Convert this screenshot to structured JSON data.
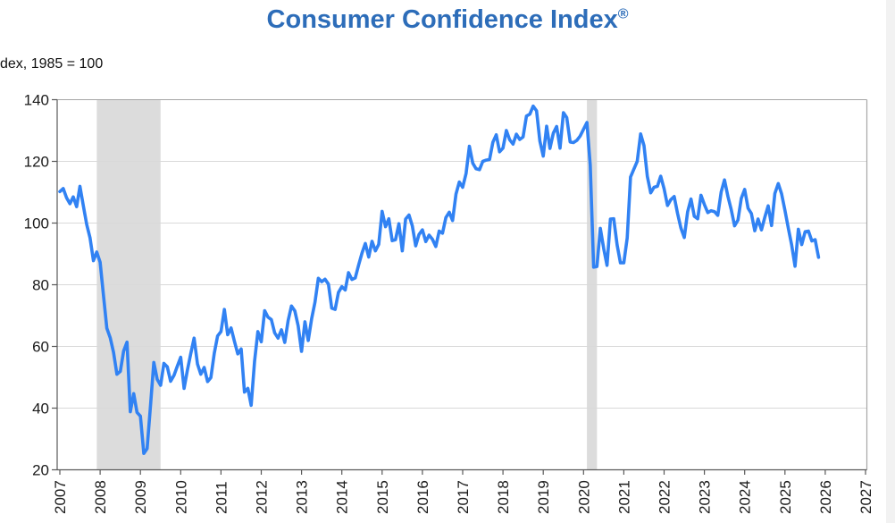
{
  "header": {
    "title": "Consumer Confidence Index",
    "registered_mark": "®",
    "axis_note": "dex, 1985 = 100"
  },
  "colors": {
    "title": "#2d6db9",
    "line": "#3182f3",
    "recession_band": "#dcdcdc",
    "gridline": "#d9d9d9",
    "axis": "#595959",
    "plot_border": "#a6a6a6",
    "tick_label": "#1a1a1a",
    "right_strip": "#f2f2f2"
  },
  "chart_data": {
    "type": "line",
    "title": "Consumer Confidence Index®",
    "ylabel": "dex, 1985 = 100",
    "xlabel": "",
    "ylim": [
      20,
      140
    ],
    "xlim": [
      2006.95,
      2027.25
    ],
    "grid": "horizontal",
    "legend": "none",
    "y_ticks": [
      "20",
      "40",
      "60",
      "80",
      "100",
      "120",
      "140"
    ],
    "x_ticks": [
      "2007",
      "2008",
      "2009",
      "2010",
      "2011",
      "2012",
      "2013",
      "2014",
      "2015",
      "2016",
      "2017",
      "2018",
      "2019",
      "2020",
      "2021",
      "2022",
      "2023",
      "2024",
      "2025",
      "2026",
      "2027"
    ],
    "recession_bands": [
      {
        "start": "2007-12",
        "end": "2009-06"
      },
      {
        "start": "2020-02",
        "end": "2020-04"
      }
    ],
    "series": [
      {
        "name": "Consumer Confidence Index",
        "frequency": "monthly",
        "start": "2007-01",
        "end": "2025-11",
        "values_by_year": {
          "2007": [
            110.2,
            111.2,
            108.2,
            106.3,
            108.5,
            105.3,
            111.9,
            105.6,
            99.5,
            95.2,
            87.8,
            90.6
          ],
          "2008": [
            87.3,
            76.4,
            65.9,
            62.8,
            58.1,
            51.0,
            51.9,
            58.5,
            61.4,
            38.8,
            44.7,
            38.6
          ],
          "2009": [
            37.4,
            25.3,
            26.9,
            40.8,
            54.8,
            49.3,
            47.4,
            54.5,
            53.4,
            48.7,
            50.6,
            53.6
          ],
          "2010": [
            56.5,
            46.4,
            52.3,
            57.7,
            62.7,
            54.3,
            51.0,
            53.2,
            48.6,
            49.9,
            57.8,
            63.4
          ],
          "2011": [
            64.8,
            72.0,
            63.8,
            66.0,
            61.7,
            57.6,
            59.2,
            45.2,
            46.4,
            40.9,
            55.2,
            64.8
          ],
          "2012": [
            61.5,
            71.6,
            69.5,
            68.7,
            64.4,
            62.7,
            65.4,
            61.3,
            68.4,
            73.1,
            71.5,
            66.7
          ],
          "2013": [
            58.4,
            68.0,
            61.9,
            69.0,
            74.3,
            82.1,
            81.0,
            81.8,
            80.2,
            72.4,
            72.0,
            77.5
          ],
          "2014": [
            79.4,
            78.3,
            83.9,
            81.7,
            82.2,
            86.4,
            90.3,
            93.4,
            89.0,
            94.1,
            91.0,
            93.1
          ],
          "2015": [
            103.8,
            98.8,
            101.4,
            94.3,
            94.6,
            99.8,
            91.0,
            101.3,
            102.6,
            99.1,
            92.6,
            96.3
          ],
          "2016": [
            97.8,
            94.0,
            96.1,
            94.7,
            92.4,
            97.4,
            96.7,
            101.8,
            103.5,
            100.8,
            109.4,
            113.3
          ],
          "2017": [
            111.6,
            116.1,
            124.9,
            119.4,
            117.6,
            117.3,
            120.0,
            120.4,
            120.6,
            126.2,
            128.6,
            123.1
          ],
          "2018": [
            124.3,
            130.0,
            127.0,
            125.6,
            128.8,
            127.1,
            127.9,
            134.7,
            135.3,
            137.9,
            136.4,
            126.6
          ],
          "2019": [
            121.7,
            131.4,
            124.2,
            129.2,
            131.3,
            124.3,
            135.8,
            134.2,
            126.3,
            126.1,
            126.8,
            128.2
          ],
          "2020": [
            130.4,
            132.6,
            118.8,
            85.7,
            85.9,
            98.3,
            91.7,
            86.3,
            101.3,
            101.4,
            92.9,
            87.1
          ],
          "2021": [
            87.1,
            95.2,
            114.9,
            117.5,
            120.0,
            128.9,
            125.1,
            115.2,
            109.8,
            111.6,
            111.9,
            115.2
          ],
          "2022": [
            111.1,
            105.7,
            107.6,
            108.6,
            103.2,
            98.4,
            95.3,
            103.6,
            107.8,
            102.2,
            101.4,
            109.0
          ],
          "2023": [
            106.0,
            103.4,
            104.0,
            103.7,
            102.5,
            110.1,
            114.0,
            108.7,
            104.3,
            99.1,
            101.0,
            108.0
          ],
          "2024": [
            110.9,
            104.8,
            103.1,
            97.5,
            101.3,
            97.8,
            101.9,
            105.6,
            99.2,
            109.6,
            112.8,
            109.5
          ],
          "2025": [
            104.1,
            98.3,
            92.9,
            86.0,
            98.0,
            93.0,
            97.2,
            97.4,
            94.2,
            94.6,
            88.9
          ]
        }
      }
    ]
  }
}
